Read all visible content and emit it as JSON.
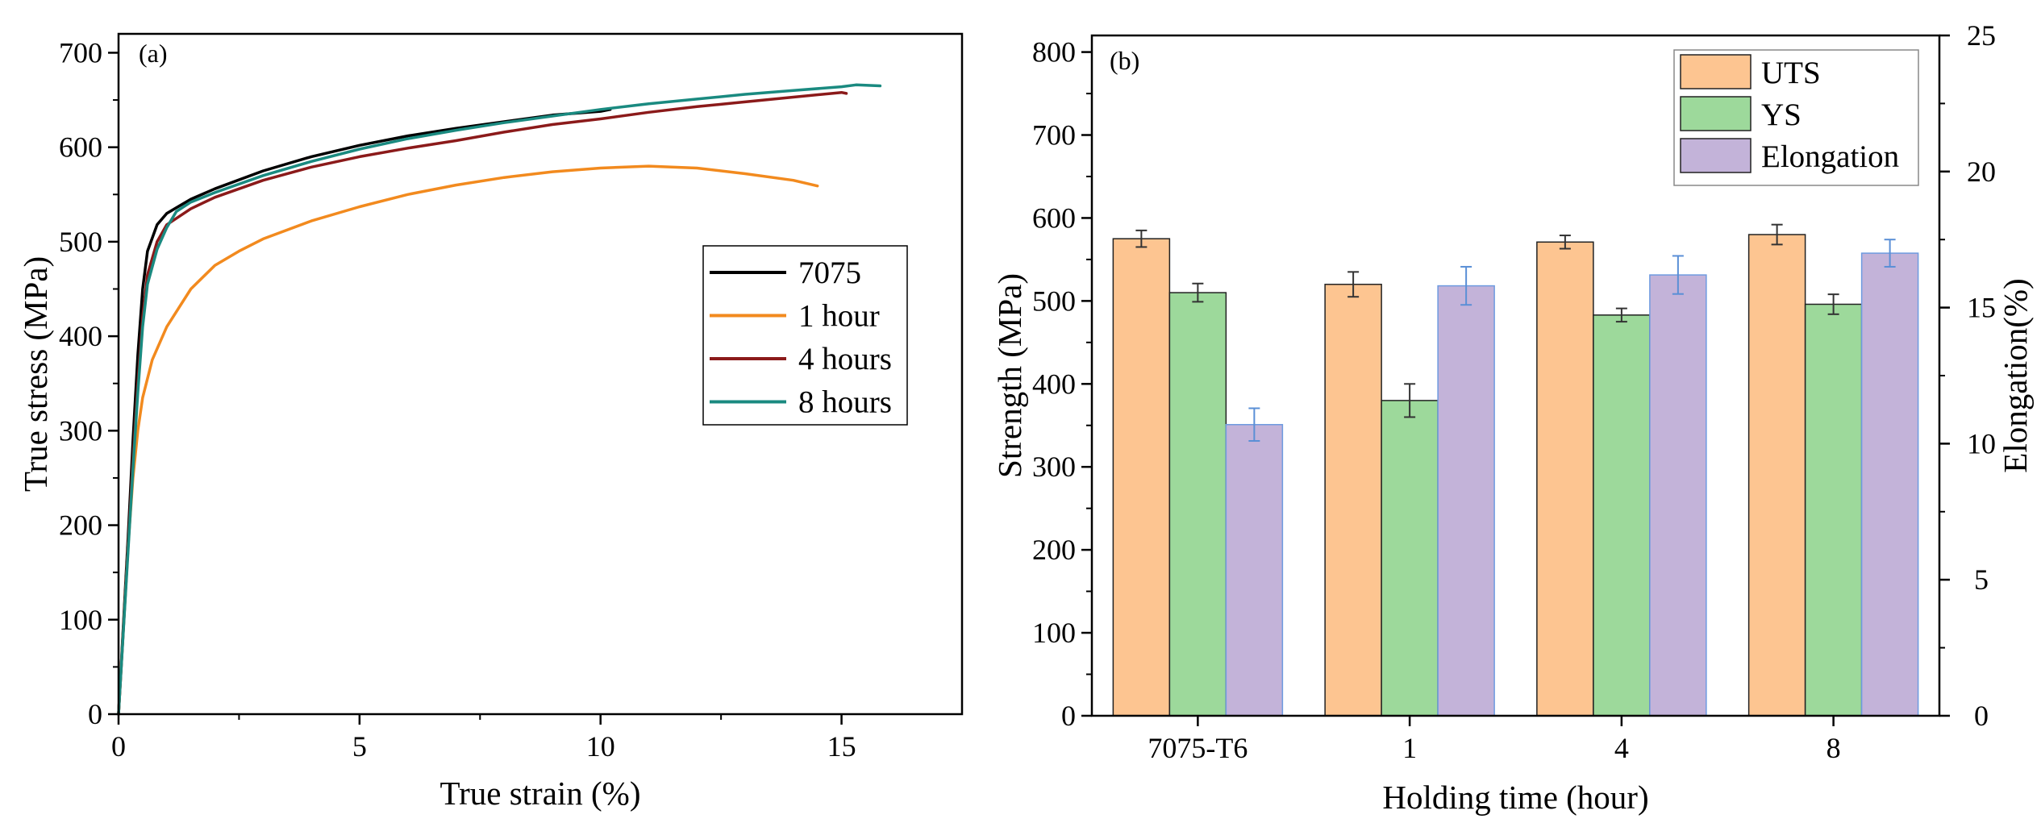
{
  "chart_data": [
    {
      "panel": "(a)",
      "type": "line",
      "xlabel": "True strain (%)",
      "ylabel": "True stress (MPa)",
      "xlim": [
        0,
        17.5
      ],
      "ylim": [
        0,
        720
      ],
      "x_ticks": [
        0,
        5,
        10,
        15
      ],
      "y_ticks": [
        0,
        100,
        200,
        300,
        400,
        500,
        600,
        700
      ],
      "legend_position": "right-middle",
      "series": [
        {
          "name": "7075",
          "color": "#000000",
          "points": [
            [
              0,
              0
            ],
            [
              0.1,
              95
            ],
            [
              0.2,
              190
            ],
            [
              0.3,
              290
            ],
            [
              0.4,
              380
            ],
            [
              0.5,
              450
            ],
            [
              0.6,
              490
            ],
            [
              0.8,
              518
            ],
            [
              1.0,
              530
            ],
            [
              1.5,
              545
            ],
            [
              2.0,
              556
            ],
            [
              3,
              575
            ],
            [
              4,
              590
            ],
            [
              5,
              602
            ],
            [
              6,
              612
            ],
            [
              7,
              620
            ],
            [
              8,
              627
            ],
            [
              9,
              634
            ],
            [
              10,
              638
            ],
            [
              10.2,
              640
            ]
          ]
        },
        {
          "name": "1 hour",
          "color": "#F28A1E",
          "points": [
            [
              0,
              0
            ],
            [
              0.1,
              90
            ],
            [
              0.2,
              180
            ],
            [
              0.3,
              250
            ],
            [
              0.4,
              300
            ],
            [
              0.5,
              335
            ],
            [
              0.7,
              375
            ],
            [
              1.0,
              410
            ],
            [
              1.5,
              450
            ],
            [
              2.0,
              475
            ],
            [
              2.5,
              490
            ],
            [
              3,
              503
            ],
            [
              4,
              522
            ],
            [
              5,
              537
            ],
            [
              6,
              550
            ],
            [
              7,
              560
            ],
            [
              8,
              568
            ],
            [
              9,
              574
            ],
            [
              10,
              578
            ],
            [
              11,
              580
            ],
            [
              12,
              578
            ],
            [
              13,
              572
            ],
            [
              14,
              565
            ],
            [
              14.5,
              559
            ]
          ]
        },
        {
          "name": "4 hours",
          "color": "#8B1A1A",
          "points": [
            [
              0,
              0
            ],
            [
              0.1,
              90
            ],
            [
              0.2,
              180
            ],
            [
              0.3,
              270
            ],
            [
              0.4,
              350
            ],
            [
              0.5,
              420
            ],
            [
              0.6,
              465
            ],
            [
              0.8,
              500
            ],
            [
              1.0,
              518
            ],
            [
              1.5,
              535
            ],
            [
              2.0,
              547
            ],
            [
              3,
              565
            ],
            [
              4,
              579
            ],
            [
              5,
              590
            ],
            [
              6,
              599
            ],
            [
              7,
              607
            ],
            [
              8,
              616
            ],
            [
              9,
              624
            ],
            [
              10,
              630
            ],
            [
              11,
              637
            ],
            [
              12,
              643
            ],
            [
              13,
              648
            ],
            [
              14,
              653
            ],
            [
              15,
              658
            ],
            [
              15.1,
              657
            ]
          ]
        },
        {
          "name": "8 hours",
          "color": "#1A8A80",
          "points": [
            [
              0,
              0
            ],
            [
              0.1,
              88
            ],
            [
              0.2,
              175
            ],
            [
              0.3,
              260
            ],
            [
              0.4,
              340
            ],
            [
              0.5,
              410
            ],
            [
              0.6,
              455
            ],
            [
              0.8,
              492
            ],
            [
              1.0,
              515
            ],
            [
              1.2,
              532
            ],
            [
              1.5,
              542
            ],
            [
              2.0,
              552
            ],
            [
              3,
              570
            ],
            [
              4,
              585
            ],
            [
              5,
              598
            ],
            [
              6,
              609
            ],
            [
              7,
              618
            ],
            [
              8,
              626
            ],
            [
              9,
              633
            ],
            [
              10,
              640
            ],
            [
              11,
              646
            ],
            [
              12,
              651
            ],
            [
              13,
              656
            ],
            [
              14,
              660
            ],
            [
              15,
              664
            ],
            [
              15.3,
              666
            ],
            [
              15.8,
              665
            ]
          ]
        }
      ]
    },
    {
      "panel": "(b)",
      "type": "bar",
      "xlabel": "Holding time (hour)",
      "ylabel": "Strength (MPa)",
      "y2label": "Elongation(%)",
      "ylim": [
        0,
        820
      ],
      "y2lim": [
        0,
        25
      ],
      "y_ticks": [
        0,
        100,
        200,
        300,
        400,
        500,
        600,
        700,
        800
      ],
      "y2_ticks": [
        0,
        5,
        10,
        15,
        20,
        25
      ],
      "categories": [
        "7075-T6",
        "1",
        "4",
        "8"
      ],
      "legend_position": "top-right",
      "series": [
        {
          "name": "UTS",
          "axis": "left",
          "color": "#FDC591",
          "values": [
            575,
            520,
            571,
            580
          ],
          "errors": [
            10,
            15,
            8,
            12
          ]
        },
        {
          "name": "YS",
          "axis": "left",
          "color": "#9DD99B",
          "values": [
            510,
            380,
            483,
            496
          ],
          "errors": [
            11,
            20,
            8,
            12
          ]
        },
        {
          "name": "Elongation",
          "axis": "right",
          "color": "#C3B3D9",
          "values": [
            10.7,
            15.8,
            16.2,
            17.0
          ],
          "errors": [
            0.6,
            0.7,
            0.7,
            0.5
          ]
        }
      ]
    }
  ]
}
